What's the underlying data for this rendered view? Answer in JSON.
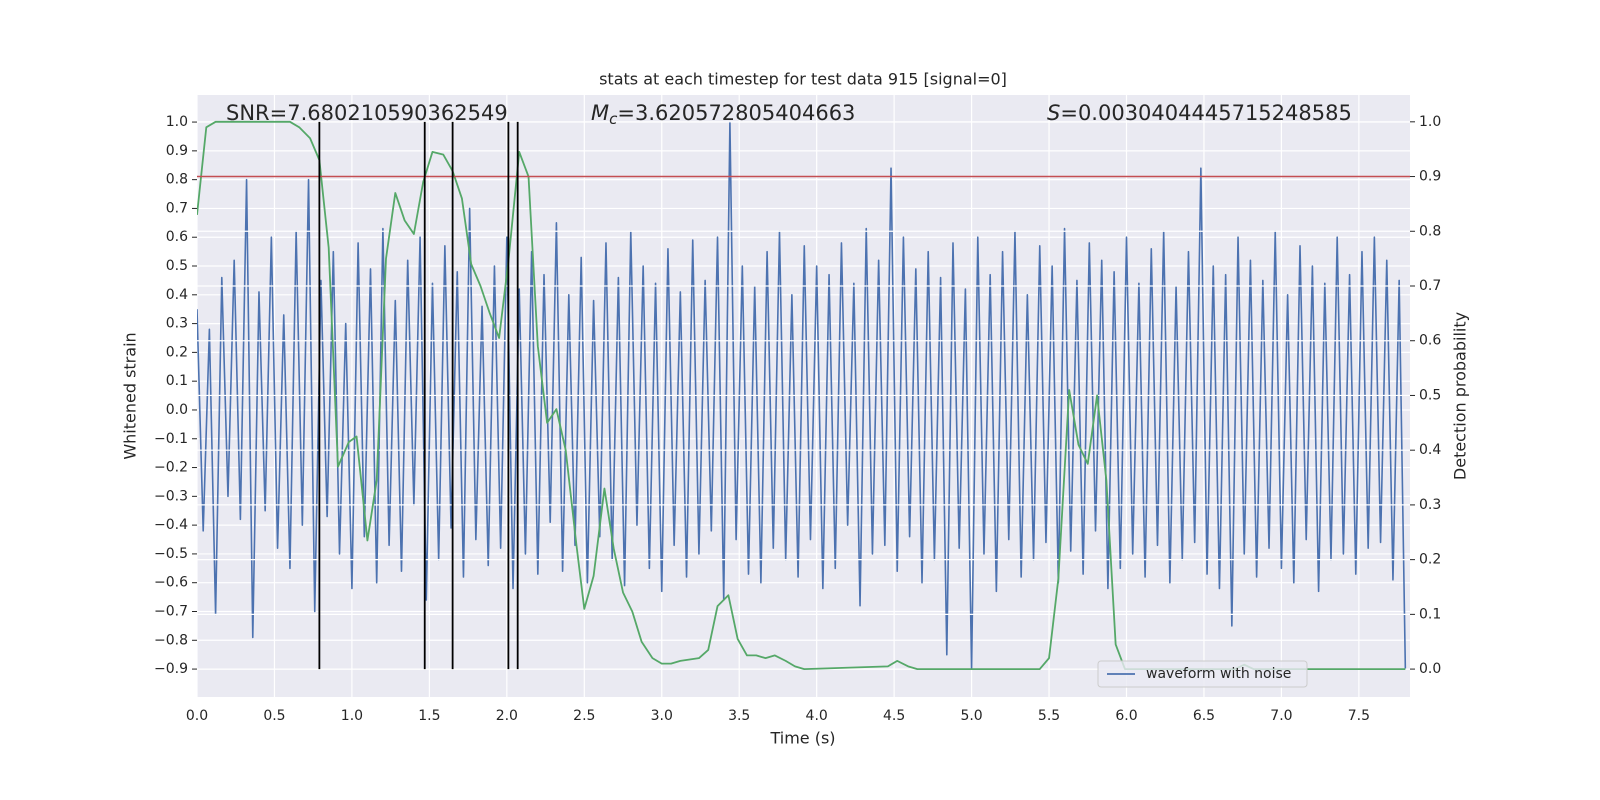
{
  "chart_data": {
    "type": "line",
    "title": "stats at each timestep for test data 915 [signal=0]",
    "xlabel": "Time (s)",
    "ylabel": "Whitened strain",
    "y2label": "Detection probability",
    "annotations": [
      {
        "text": "SNR=7.680210590362549"
      },
      {
        "symbol": "M",
        "subscript": "c",
        "text": "=3.620572805404663"
      },
      {
        "symbol": "S",
        "text": "=0.0030404445715248585"
      }
    ],
    "xlim": [
      0,
      7.83
    ],
    "ylim": [
      -0.997,
      1.094
    ],
    "y2lim": [
      -0.051,
      1.049
    ],
    "xticks": [
      {
        "value": 0,
        "label": "0.0"
      },
      {
        "value": 0.5,
        "label": "0.5"
      },
      {
        "value": 1,
        "label": "1.0"
      },
      {
        "value": 1.5,
        "label": "1.5"
      },
      {
        "value": 2,
        "label": "2.0"
      },
      {
        "value": 2.5,
        "label": "2.5"
      },
      {
        "value": 3,
        "label": "3.0"
      },
      {
        "value": 3.5,
        "label": "3.5"
      },
      {
        "value": 4,
        "label": "4.0"
      },
      {
        "value": 4.5,
        "label": "4.5"
      },
      {
        "value": 5,
        "label": "5.0"
      },
      {
        "value": 5.5,
        "label": "5.5"
      },
      {
        "value": 6,
        "label": "6.0"
      },
      {
        "value": 6.5,
        "label": "6.5"
      },
      {
        "value": 7,
        "label": "7.0"
      },
      {
        "value": 7.5,
        "label": "7.5"
      }
    ],
    "yticks": [
      {
        "value": -0.9,
        "label": "−0.9"
      },
      {
        "value": -0.8,
        "label": "−0.8"
      },
      {
        "value": -0.7,
        "label": "−0.7"
      },
      {
        "value": -0.6,
        "label": "−0.6"
      },
      {
        "value": -0.5,
        "label": "−0.5"
      },
      {
        "value": -0.4,
        "label": "−0.4"
      },
      {
        "value": -0.3,
        "label": "−0.3"
      },
      {
        "value": -0.2,
        "label": "−0.2"
      },
      {
        "value": -0.1,
        "label": "−0.1"
      },
      {
        "value": 0,
        "label": "0.0"
      },
      {
        "value": 0.1,
        "label": "0.1"
      },
      {
        "value": 0.2,
        "label": "0.2"
      },
      {
        "value": 0.3,
        "label": "0.3"
      },
      {
        "value": 0.4,
        "label": "0.4"
      },
      {
        "value": 0.5,
        "label": "0.5"
      },
      {
        "value": 0.6,
        "label": "0.6"
      },
      {
        "value": 0.7,
        "label": "0.7"
      },
      {
        "value": 0.8,
        "label": "0.8"
      },
      {
        "value": 0.9,
        "label": "0.9"
      },
      {
        "value": 1,
        "label": "1.0"
      }
    ],
    "y2ticks": [
      {
        "value": 0,
        "label": "0.0"
      },
      {
        "value": 0.1,
        "label": "0.1"
      },
      {
        "value": 0.2,
        "label": "0.2"
      },
      {
        "value": 0.3,
        "label": "0.3"
      },
      {
        "value": 0.4,
        "label": "0.4"
      },
      {
        "value": 0.5,
        "label": "0.5"
      },
      {
        "value": 0.6,
        "label": "0.6"
      },
      {
        "value": 0.7,
        "label": "0.7"
      },
      {
        "value": 0.8,
        "label": "0.8"
      },
      {
        "value": 0.9,
        "label": "0.9"
      },
      {
        "value": 1,
        "label": "1.0"
      }
    ],
    "grid": true,
    "legend": "lower right",
    "hline": {
      "y": 0.9,
      "axis": "y2",
      "color": "#c44e52"
    },
    "vlines": {
      "x": [
        0.79,
        1.47,
        1.65,
        2.01,
        2.07
      ],
      "ymin": 0,
      "ymax": 1,
      "axis": "y2",
      "color": "#000000"
    },
    "series": [
      {
        "name": "waveform with noise",
        "color": "#4c72b0",
        "x": [
          0,
          0.04,
          0.08,
          0.12,
          0.16,
          0.2,
          0.24,
          0.28,
          0.32,
          0.36,
          0.4,
          0.44,
          0.48,
          0.52,
          0.56,
          0.6,
          0.64,
          0.68,
          0.72,
          0.76,
          0.8,
          0.84,
          0.88,
          0.92,
          0.96,
          1,
          1.04,
          1.08,
          1.12,
          1.16,
          1.2,
          1.24,
          1.28,
          1.32,
          1.36,
          1.4,
          1.44,
          1.48,
          1.52,
          1.56,
          1.6,
          1.64,
          1.68,
          1.72,
          1.76,
          1.8,
          1.84,
          1.88,
          1.92,
          1.96,
          2,
          2.04,
          2.08,
          2.12,
          2.16,
          2.2,
          2.24,
          2.28,
          2.32,
          2.36,
          2.4,
          2.44,
          2.48,
          2.52,
          2.56,
          2.6,
          2.64,
          2.68,
          2.72,
          2.76,
          2.8,
          2.84,
          2.88,
          2.92,
          2.96,
          3,
          3.04,
          3.08,
          3.12,
          3.16,
          3.2,
          3.24,
          3.28,
          3.32,
          3.36,
          3.4,
          3.44,
          3.48,
          3.52,
          3.56,
          3.6,
          3.64,
          3.68,
          3.72,
          3.76,
          3.8,
          3.84,
          3.88,
          3.92,
          3.96,
          4,
          4.04,
          4.08,
          4.12,
          4.16,
          4.2,
          4.24,
          4.28,
          4.32,
          4.36,
          4.4,
          4.44,
          4.48,
          4.52,
          4.56,
          4.6,
          4.64,
          4.68,
          4.72,
          4.76,
          4.8,
          4.84,
          4.88,
          4.92,
          4.96,
          5,
          5.04,
          5.08,
          5.12,
          5.16,
          5.2,
          5.24,
          5.28,
          5.32,
          5.36,
          5.4,
          5.44,
          5.48,
          5.52,
          5.56,
          5.6,
          5.64,
          5.68,
          5.72,
          5.76,
          5.8,
          5.84,
          5.88,
          5.92,
          5.96,
          6,
          6.04,
          6.08,
          6.12,
          6.16,
          6.2,
          6.24,
          6.28,
          6.32,
          6.36,
          6.4,
          6.44,
          6.48,
          6.52,
          6.56,
          6.6,
          6.64,
          6.68,
          6.72,
          6.76,
          6.8,
          6.84,
          6.88,
          6.92,
          6.96,
          7,
          7.04,
          7.08,
          7.12,
          7.16,
          7.2,
          7.24,
          7.28,
          7.32,
          7.36,
          7.4,
          7.44,
          7.48,
          7.52,
          7.56,
          7.6,
          7.64,
          7.68,
          7.72,
          7.76,
          7.8
        ],
        "values": [
          0.35,
          -0.42,
          0.28,
          -0.71,
          0.46,
          -0.3,
          0.52,
          -0.38,
          0.8,
          -0.79,
          0.41,
          -0.35,
          0.6,
          -0.48,
          0.33,
          -0.55,
          0.62,
          -0.4,
          0.8,
          -0.7,
          0.45,
          -0.37,
          0.55,
          -0.5,
          0.3,
          -0.62,
          0.58,
          -0.44,
          0.49,
          -0.6,
          0.63,
          -0.47,
          0.38,
          -0.56,
          0.52,
          -0.33,
          0.6,
          -0.66,
          0.44,
          -0.52,
          0.57,
          -0.41,
          0.48,
          -0.58,
          0.7,
          -0.45,
          0.36,
          -0.54,
          0.5,
          -0.48,
          0.6,
          -0.62,
          0.42,
          -0.5,
          0.55,
          -0.57,
          0.47,
          -0.39,
          0.65,
          -0.56,
          0.4,
          -0.47,
          0.53,
          -0.6,
          0.38,
          -0.44,
          0.58,
          -0.52,
          0.46,
          -0.61,
          0.62,
          -0.4,
          0.5,
          -0.55,
          0.44,
          -0.63,
          0.56,
          -0.47,
          0.41,
          -0.58,
          0.59,
          -0.5,
          0.45,
          -0.42,
          0.6,
          -0.66,
          1.0,
          -0.45,
          0.5,
          -0.57,
          0.43,
          -0.6,
          0.55,
          -0.48,
          0.62,
          -0.52,
          0.4,
          -0.58,
          0.57,
          -0.45,
          0.5,
          -0.62,
          0.47,
          -0.55,
          0.58,
          -0.4,
          0.44,
          -0.68,
          0.63,
          -0.5,
          0.52,
          -0.47,
          0.84,
          -0.56,
          0.6,
          -0.44,
          0.49,
          -0.6,
          0.55,
          -0.52,
          0.46,
          -0.85,
          0.58,
          -0.48,
          0.42,
          -0.9,
          0.6,
          -0.5,
          0.47,
          -0.63,
          0.55,
          -0.45,
          0.62,
          -0.58,
          0.4,
          -0.52,
          0.57,
          -0.46,
          0.5,
          -0.6,
          0.63,
          -0.49,
          0.45,
          -0.57,
          0.58,
          -0.42,
          0.52,
          -0.62,
          0.48,
          -0.55,
          0.6,
          -0.5,
          0.44,
          -0.58,
          0.56,
          -0.47,
          0.62,
          -0.6,
          0.43,
          -0.52,
          0.55,
          -0.46,
          0.84,
          -0.57,
          0.5,
          -0.62,
          0.47,
          -0.75,
          0.6,
          -0.5,
          0.52,
          -0.58,
          0.45,
          -0.48,
          0.62,
          -0.55,
          0.4,
          -0.6,
          0.57,
          -0.45,
          0.5,
          -0.63,
          0.44,
          -0.52,
          0.6,
          -0.5,
          0.47,
          -0.57,
          0.55,
          -0.48,
          0.6,
          -0.46,
          0.52,
          -0.59,
          0.45,
          -0.9
        ]
      },
      {
        "color": "#55a868",
        "axis": "y2",
        "x": [
          0,
          0.06,
          0.12,
          0.6,
          0.66,
          0.73,
          0.79,
          0.85,
          0.91,
          0.98,
          1.03,
          1.1,
          1.16,
          1.22,
          1.28,
          1.34,
          1.4,
          1.46,
          1.52,
          1.59,
          1.65,
          1.71,
          1.77,
          1.83,
          1.89,
          1.95,
          2.01,
          2.08,
          2.14,
          2.2,
          2.26,
          2.32,
          2.38,
          2.45,
          2.5,
          2.56,
          2.63,
          2.69,
          2.75,
          2.81,
          2.87,
          2.94,
          3.0,
          3.06,
          3.12,
          3.24,
          3.3,
          3.36,
          3.43,
          3.49,
          3.55,
          3.61,
          3.67,
          3.73,
          3.8,
          3.86,
          3.92,
          4.46,
          4.52,
          4.59,
          4.65,
          5.44,
          5.5,
          5.56,
          5.63,
          5.69,
          5.75,
          5.81,
          5.87,
          5.93,
          5.99,
          6.7,
          6.76,
          6.82,
          7.8
        ],
        "values": [
          0.83,
          0.99,
          1.0,
          1.0,
          0.99,
          0.97,
          0.93,
          0.77,
          0.37,
          0.415,
          0.425,
          0.235,
          0.345,
          0.75,
          0.87,
          0.82,
          0.795,
          0.89,
          0.945,
          0.94,
          0.91,
          0.86,
          0.74,
          0.7,
          0.65,
          0.605,
          0.745,
          0.945,
          0.9,
          0.59,
          0.45,
          0.475,
          0.4,
          0.225,
          0.11,
          0.17,
          0.33,
          0.22,
          0.14,
          0.105,
          0.05,
          0.02,
          0.01,
          0.01,
          0.015,
          0.02,
          0.035,
          0.115,
          0.135,
          0.055,
          0.025,
          0.025,
          0.02,
          0.025,
          0.015,
          0.005,
          0.0,
          0.005,
          0.015,
          0.005,
          0.0,
          0.0,
          0.02,
          0.165,
          0.51,
          0.41,
          0.375,
          0.5,
          0.345,
          0.045,
          0.0,
          0.0,
          0.008,
          0.0,
          0.0
        ]
      }
    ]
  }
}
